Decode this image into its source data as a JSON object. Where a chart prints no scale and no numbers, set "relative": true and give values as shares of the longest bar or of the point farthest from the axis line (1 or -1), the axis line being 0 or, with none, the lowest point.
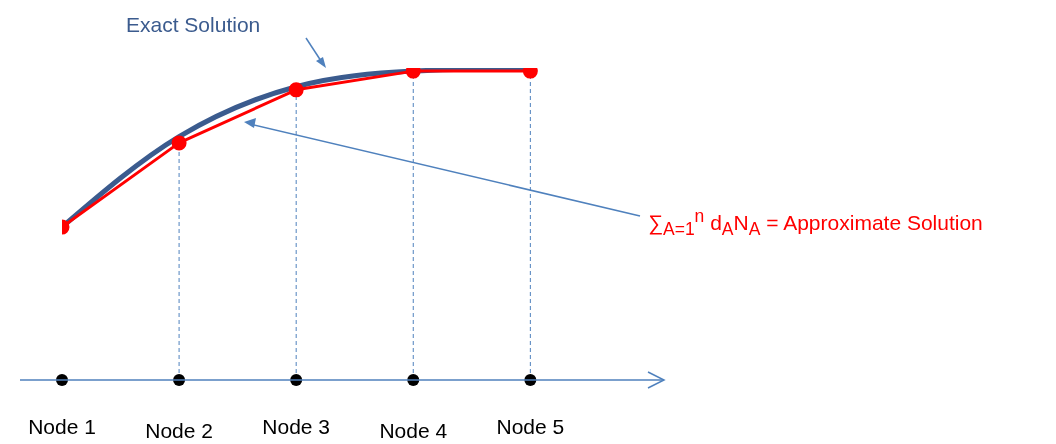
{
  "chart_data": {
    "type": "line",
    "relative": true,
    "categories": [
      "Node 1",
      "Node 2",
      "Node 3",
      "Node 4",
      "Node 5"
    ],
    "series": [
      {
        "name": "Exact Solution",
        "color": "#3b5b8e",
        "marker": "none",
        "values": [
          0.49,
          0.78,
          0.94,
          0.99,
          1.0
        ]
      },
      {
        "name": "∑$_{A=1}$$^{n}$ d$_{A}$N$_{A}$  = Approximate Solution",
        "color": "#ff0000",
        "marker": "circle",
        "values": [
          0.49,
          0.76,
          0.93,
          0.99,
          0.99
        ]
      }
    ],
    "ref_lines": [
      {
        "axis": "x",
        "value": "Node 2",
        "line_style": "dashed",
        "color": "#4f81bd"
      },
      {
        "axis": "x",
        "value": "Node 3",
        "line_style": "dashed",
        "color": "#4f81bd"
      },
      {
        "axis": "x",
        "value": "Node 4",
        "line_style": "dashed",
        "color": "#4f81bd"
      },
      {
        "axis": "x",
        "value": "Node 5",
        "line_style": "dashed",
        "color": "#4f81bd"
      }
    ]
  }
}
